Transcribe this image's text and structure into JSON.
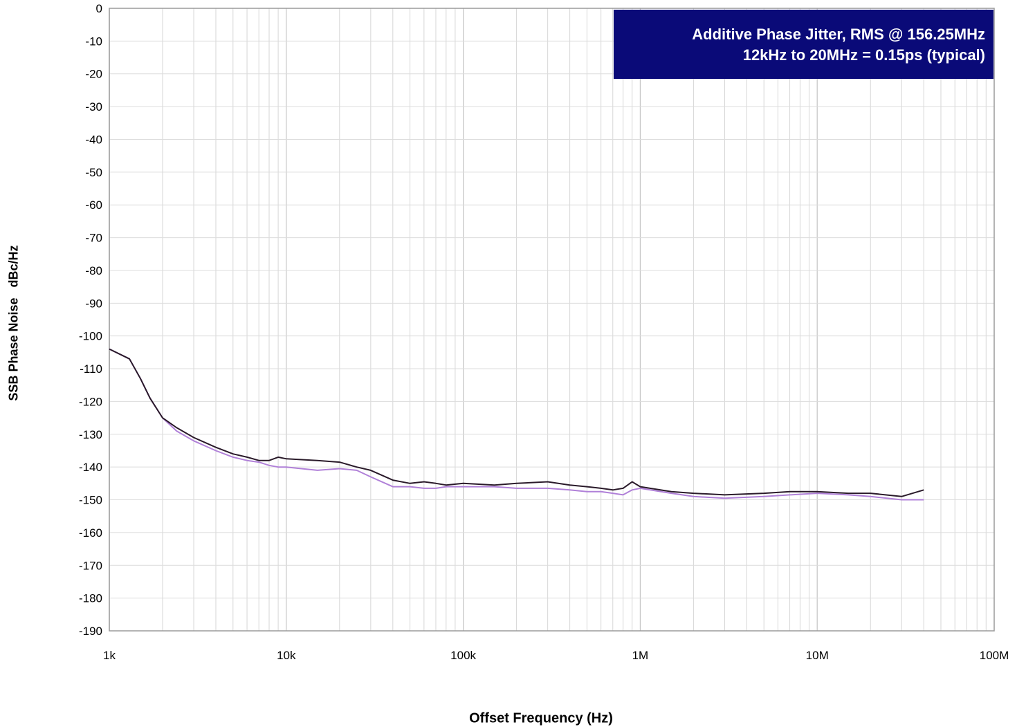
{
  "chart_data": {
    "type": "line",
    "ylabel": "SSB Phase Noise   dBc/Hz",
    "xlabel": "Offset Frequency (Hz)",
    "x_scale": "log",
    "xlim": [
      1000,
      100000000
    ],
    "ylim": [
      -190,
      0
    ],
    "y_ticks": [
      0,
      -10,
      -20,
      -30,
      -40,
      -50,
      -60,
      -70,
      -80,
      -90,
      -100,
      -110,
      -120,
      -130,
      -140,
      -150,
      -160,
      -170,
      -180,
      -190
    ],
    "x_ticks": [
      {
        "value": 1000,
        "label": "1k"
      },
      {
        "value": 10000,
        "label": "10k"
      },
      {
        "value": 100000,
        "label": "100k"
      },
      {
        "value": 1000000,
        "label": "1M"
      },
      {
        "value": 10000000,
        "label": "10M"
      },
      {
        "value": 100000000,
        "label": "100M"
      }
    ],
    "grid": true,
    "annotation": {
      "line1": "Additive Phase Jitter, RMS @ 156.25MHz",
      "line2": "12kHz to 20MHz = 0.15ps (typical)"
    },
    "series": [
      {
        "color": "#2a1a2a",
        "x": [
          1000,
          1300,
          1500,
          1700,
          2000,
          2400,
          3000,
          4000,
          5000,
          6000,
          7000,
          8000,
          9000,
          10000,
          15000,
          20000,
          25000,
          30000,
          40000,
          50000,
          60000,
          70000,
          80000,
          100000,
          150000,
          200000,
          300000,
          400000,
          500000,
          600000,
          700000,
          800000,
          900000,
          1000000,
          1500000,
          2000000,
          3000000,
          5000000,
          7000000,
          10000000,
          15000000,
          20000000,
          30000000,
          40000000
        ],
        "y": [
          -104,
          -107,
          -113,
          -119,
          -125,
          -128,
          -131,
          -134,
          -136,
          -137,
          -138,
          -138,
          -137,
          -137.5,
          -138,
          -138.5,
          -140,
          -141,
          -144,
          -145,
          -144.5,
          -145,
          -145.5,
          -145,
          -145.5,
          -145,
          -144.5,
          -145.5,
          -146,
          -146.5,
          -147,
          -146.5,
          -144.5,
          -146,
          -147.5,
          -148,
          -148.5,
          -148,
          -147.5,
          -147.5,
          -148,
          -148,
          -149,
          -147
        ]
      },
      {
        "color": "#b080d8",
        "x": [
          1000,
          1300,
          1500,
          1700,
          2000,
          2400,
          3000,
          4000,
          5000,
          6000,
          7000,
          8000,
          9000,
          10000,
          15000,
          20000,
          25000,
          30000,
          40000,
          50000,
          60000,
          70000,
          80000,
          100000,
          150000,
          200000,
          300000,
          400000,
          500000,
          600000,
          700000,
          800000,
          900000,
          1000000,
          1500000,
          2000000,
          3000000,
          5000000,
          7000000,
          10000000,
          15000000,
          20000000,
          30000000,
          40000000
        ],
        "y": [
          -104,
          -107,
          -113,
          -119,
          -125,
          -129,
          -132,
          -135,
          -137,
          -138,
          -138.5,
          -139.5,
          -140,
          -140,
          -141,
          -140.5,
          -141,
          -143,
          -146,
          -146,
          -146.5,
          -146.5,
          -146,
          -146,
          -146,
          -146.5,
          -146.5,
          -147,
          -147.5,
          -147.5,
          -148,
          -148.5,
          -147,
          -146.5,
          -148,
          -149,
          -149.5,
          -149,
          -148.5,
          -148,
          -148.5,
          -149,
          -150,
          -150
        ]
      }
    ]
  }
}
